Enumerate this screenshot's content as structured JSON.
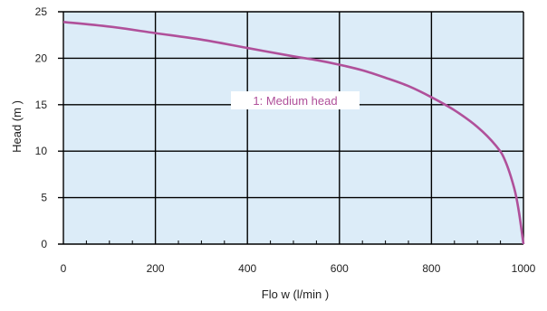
{
  "chart_data": {
    "type": "line",
    "title": "",
    "xlabel": "Flo w (l/min )",
    "ylabel": "Head (m )",
    "xlim": [
      0,
      1000
    ],
    "ylim": [
      0,
      25
    ],
    "x_ticks": [
      0,
      200,
      400,
      600,
      800,
      1000
    ],
    "y_ticks": [
      0,
      5,
      10,
      15,
      20,
      25
    ],
    "x_tick_labels": [
      "0",
      "200",
      "400",
      "600",
      "800",
      "1000"
    ],
    "y_tick_labels": [
      "0",
      "5",
      "10",
      "15",
      "20",
      "25"
    ],
    "grid": true,
    "background_color": "#dcecf8",
    "grid_color": "#000000",
    "series": [
      {
        "name": "1: Medium head",
        "color": "#b0509a",
        "x": [
          0,
          100,
          200,
          300,
          400,
          500,
          550,
          600,
          650,
          700,
          750,
          800,
          850,
          900,
          940,
          960,
          980,
          990,
          1000
        ],
        "y": [
          23.9,
          23.4,
          22.7,
          22.0,
          21.1,
          20.2,
          19.8,
          19.3,
          18.7,
          17.9,
          17.0,
          15.8,
          14.4,
          12.6,
          10.6,
          9.0,
          6.0,
          3.5,
          0.0
        ]
      }
    ]
  }
}
